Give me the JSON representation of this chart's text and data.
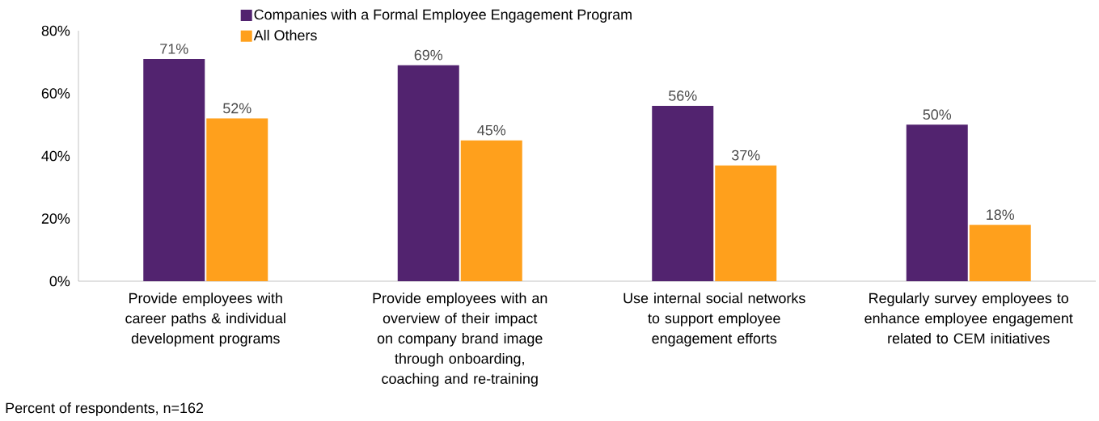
{
  "chart_data": {
    "type": "bar",
    "categories": [
      "Provide employees with career paths & individual development programs",
      "Provide employees with an overview of their impact on company brand image through onboarding, coaching and re-training",
      "Use internal social networks to support employee engagement efforts",
      "Regularly survey employees to enhance employee engagement related to CEM initiatives"
    ],
    "series": [
      {
        "name": "Companies with a Formal Employee Engagement Program",
        "color": "#52236f",
        "values": [
          71,
          69,
          56,
          50
        ],
        "value_labels": [
          "71%",
          "69%",
          "56%",
          "50%"
        ]
      },
      {
        "name": "All Others",
        "color": "#ffa01c",
        "values": [
          52,
          45,
          37,
          18
        ],
        "value_labels": [
          "52%",
          "45%",
          "37%",
          "18%"
        ]
      }
    ],
    "ylim": [
      0,
      80
    ],
    "yticks": [
      {
        "value": 0,
        "label": "0%"
      },
      {
        "value": 20,
        "label": "20%"
      },
      {
        "value": 40,
        "label": "40%"
      },
      {
        "value": 60,
        "label": "60%"
      },
      {
        "value": 80,
        "label": "80%"
      }
    ],
    "legend": "top",
    "annotations": [
      "Percent of respondents, n=162"
    ]
  }
}
